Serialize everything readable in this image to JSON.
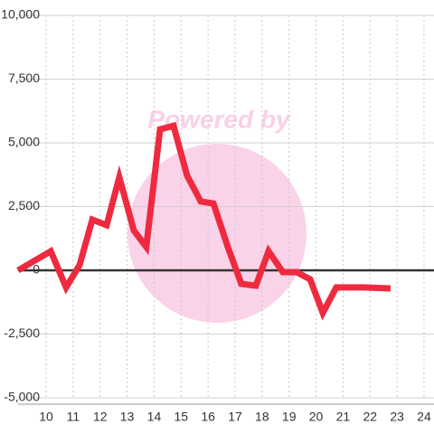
{
  "chart_data": {
    "type": "line",
    "watermark": "Powered by",
    "x": [
      8.96,
      10.17,
      10.74,
      11.24,
      11.71,
      12.24,
      12.71,
      13.25,
      13.71,
      14.22,
      14.72,
      15.22,
      15.73,
      16.2,
      16.73,
      17.23,
      17.77,
      18.24,
      18.77,
      19.28,
      19.78,
      20.25,
      20.75,
      21.76,
      22.76
    ],
    "series": [
      {
        "color": "#ee2a3f",
        "values": [
          0,
          750,
          -670,
          210,
          1990,
          1770,
          3650,
          1560,
          920,
          5530,
          5670,
          3720,
          2700,
          2620,
          920,
          -530,
          -600,
          750,
          -70,
          -70,
          -350,
          -1670,
          -670,
          -670,
          -710
        ]
      }
    ],
    "xlim": [
      8.96,
      24.37
    ],
    "xticks": [
      10,
      11,
      12,
      13,
      14,
      15,
      16,
      17,
      18,
      19,
      20,
      21,
      22,
      23,
      24
    ],
    "ylim": [
      -5000,
      10000
    ],
    "yticks": [
      {
        "value": -5000,
        "label": "-5,000"
      },
      {
        "value": -2500,
        "label": "-2,500"
      },
      0,
      {
        "value": 2500,
        "label": "2,500"
      },
      {
        "value": 5000,
        "label": "5,000"
      },
      {
        "value": 7500,
        "label": "7,500"
      },
      {
        "value": 10000,
        "label": "10,000"
      }
    ],
    "grid": true
  }
}
